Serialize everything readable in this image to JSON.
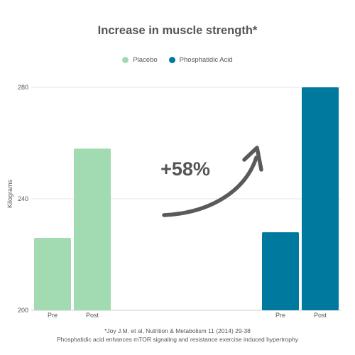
{
  "chart_data": {
    "type": "bar",
    "title": "Increase in muscle strength*",
    "ylabel": "Kilograms",
    "xlabel": "",
    "ylim": [
      200,
      280
    ],
    "yticks": [
      200,
      240,
      280
    ],
    "grid": true,
    "legend_position": "top-center",
    "groups": [
      {
        "name": "Placebo",
        "color": "#a2dbb1",
        "categories": [
          "Pre",
          "Post"
        ],
        "values": [
          226,
          258
        ]
      },
      {
        "name": "Phosphatidic Acid",
        "color": "#00799e",
        "categories": [
          "Pre",
          "Post"
        ],
        "values": [
          228,
          280
        ]
      }
    ],
    "annotation": {
      "text": "+58%",
      "color": "#555555"
    }
  },
  "legend": {
    "items": [
      {
        "label": "Placebo",
        "color": "#a2dbb1"
      },
      {
        "label": "Phosphatidic Acid",
        "color": "#00799e"
      }
    ]
  },
  "footnotes": {
    "citation": "*Joy J.M. et al, Nutrition & Metabolism 11 (2014) 29-38",
    "caption": "Phosphatidic acid enhances mTOR signaling and resistance exercise induced hypertrophy"
  }
}
